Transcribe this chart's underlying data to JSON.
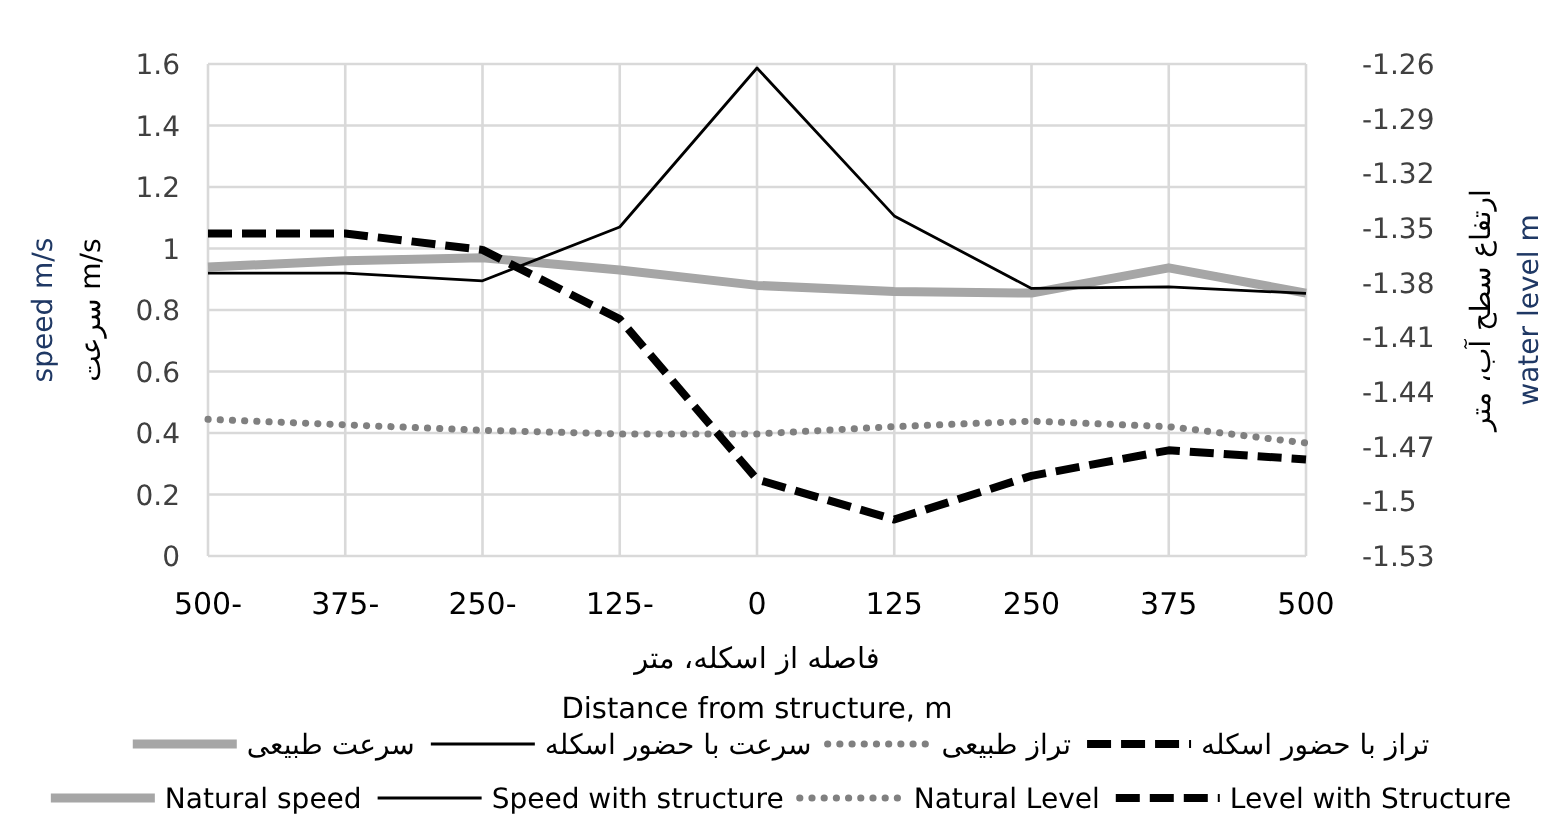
{
  "chart_data": {
    "type": "line",
    "categories": [
      "500-",
      "375-",
      "250-",
      "125-",
      "0",
      "125",
      "250",
      "375",
      "500"
    ],
    "xlabel": "فاصله از اسکله، متر\nDistance from structure, m",
    "ylabel": "speed m/s\nسرعت m/s",
    "y2label": "ارتفاع سطح آب، متر\nwater level m",
    "ylim": [
      0,
      1.6
    ],
    "yticks": [
      0,
      0.2,
      0.4,
      0.6,
      0.8,
      1,
      1.2,
      1.4,
      1.6
    ],
    "y2lim": [
      -1.53,
      -1.26
    ],
    "y2ticks": [
      -1.53,
      -1.5,
      -1.47,
      -1.44,
      -1.41,
      -1.38,
      -1.35,
      -1.32,
      -1.29,
      -1.26
    ],
    "grid": true,
    "legend": "bottom",
    "annotations": [
      "سرعت طبیعی",
      "سرعت با حضور اسکله",
      "تراز طبیعی",
      "تراز با حضور اسکله"
    ],
    "series": [
      {
        "name": "Natural speed",
        "color": "#a6a6a6",
        "line_style": "solid",
        "values": [
          0.94,
          0.96,
          0.97,
          0.93,
          0.88,
          0.86,
          0.855,
          0.937,
          0.855
        ]
      },
      {
        "name": "Speed with structure",
        "color": "#000000",
        "line_style": "solid",
        "values": [
          0.92,
          0.92,
          0.895,
          1.07,
          1.587,
          1.106,
          0.87,
          0.875,
          0.854
        ]
      },
      {
        "name": "Natural Level",
        "color": "#808080",
        "line_style": "dotted",
        "axis": "y2",
        "values": [
          -1.455,
          -1.458,
          -1.461,
          -1.463,
          -1.463,
          -1.459,
          -1.456,
          -1.459,
          -1.468
        ]
      },
      {
        "name": "Level with Structure",
        "color": "#000000",
        "line_style": "dashed",
        "axis": "y2",
        "values": [
          -1.353,
          -1.353,
          -1.362,
          -1.4,
          -1.488,
          -1.51,
          -1.486,
          -1.472,
          -1.477
        ]
      }
    ]
  }
}
